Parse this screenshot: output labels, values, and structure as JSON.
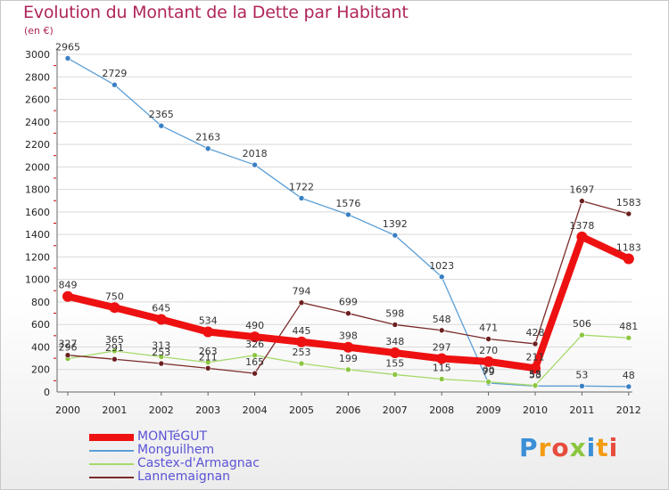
{
  "title": "Evolution du Montant de la Dette par Habitant",
  "subtitle": "(en €)",
  "logo": "Proxiti",
  "chart_data": {
    "type": "line",
    "title": "Evolution du Montant de la Dette par Habitant",
    "ylabel": "(en €)",
    "ylim": [
      0,
      3000
    ],
    "yticks": [
      0,
      200,
      400,
      600,
      800,
      1000,
      1200,
      1400,
      1600,
      1800,
      2000,
      2200,
      2400,
      2600,
      2800,
      3000
    ],
    "categories": [
      "2000",
      "2001",
      "2002",
      "2003",
      "2004",
      "2005",
      "2006",
      "2007",
      "2008",
      "2009",
      "2010",
      "2011",
      "2012"
    ],
    "series": [
      {
        "name": "Monguilhem",
        "color": "#5c9fd6",
        "marker": "#3a7fc4",
        "values": [
          2965,
          2729,
          2365,
          2163,
          2018,
          1722,
          1576,
          1392,
          1023,
          79,
          53,
          53,
          48
        ],
        "labels": [
          "2965",
          "2729",
          "2365",
          "2163",
          "2018",
          "1722",
          "1576",
          "1392",
          "1023",
          "79",
          "53",
          "53",
          "48"
        ]
      },
      {
        "name": "Castex-d'Armagnac",
        "color": "#a6d96a",
        "marker": "#8cc63f",
        "values": [
          296,
          365,
          313,
          263,
          326,
          253,
          199,
          155,
          115,
          90,
          58,
          506,
          481
        ],
        "labels": [
          "296",
          "365",
          "313",
          "263",
          "326",
          "253",
          "199",
          "155",
          "115",
          "90",
          "58",
          "506",
          "481"
        ]
      },
      {
        "name": "Lannemaignan",
        "color": "#7a2a2a",
        "marker": "#6b1f1f",
        "values": [
          327,
          291,
          253,
          211,
          165,
          794,
          699,
          598,
          548,
          471,
          428,
          1697,
          1583
        ],
        "labels": [
          "327",
          "291",
          "253",
          "211",
          "165",
          "794",
          "699",
          "598",
          "548",
          "471",
          "428",
          "1697",
          "1583"
        ]
      },
      {
        "name": "MONTéGUT",
        "color": "#ee1111",
        "marker": "#ee1111",
        "values": [
          849,
          750,
          645,
          534,
          490,
          445,
          398,
          348,
          297,
          270,
          211,
          1378,
          1183
        ],
        "labels": [
          "849",
          "750",
          "645",
          "534",
          "490",
          "445",
          "398",
          "348",
          "297",
          "270",
          "211",
          "1378",
          "1183"
        ]
      }
    ],
    "legend": [
      "MONTéGUT",
      "Monguilhem",
      "Castex-d'Armagnac",
      "Lannemaignan"
    ],
    "legend_position": "bottom-left"
  },
  "legend_colors": {
    "MONTéGUT": "#ee1111",
    "Monguilhem": "#5c9fd6",
    "Castex-d'Armagnac": "#a6d96a",
    "Lannemaignan": "#7a2a2a"
  },
  "logo_colors": [
    "#3a8fd6",
    "#f39c12",
    "#e74c3c",
    "#8cc63f",
    "#3a8fd6",
    "#f39c12",
    "#e74c3c"
  ]
}
